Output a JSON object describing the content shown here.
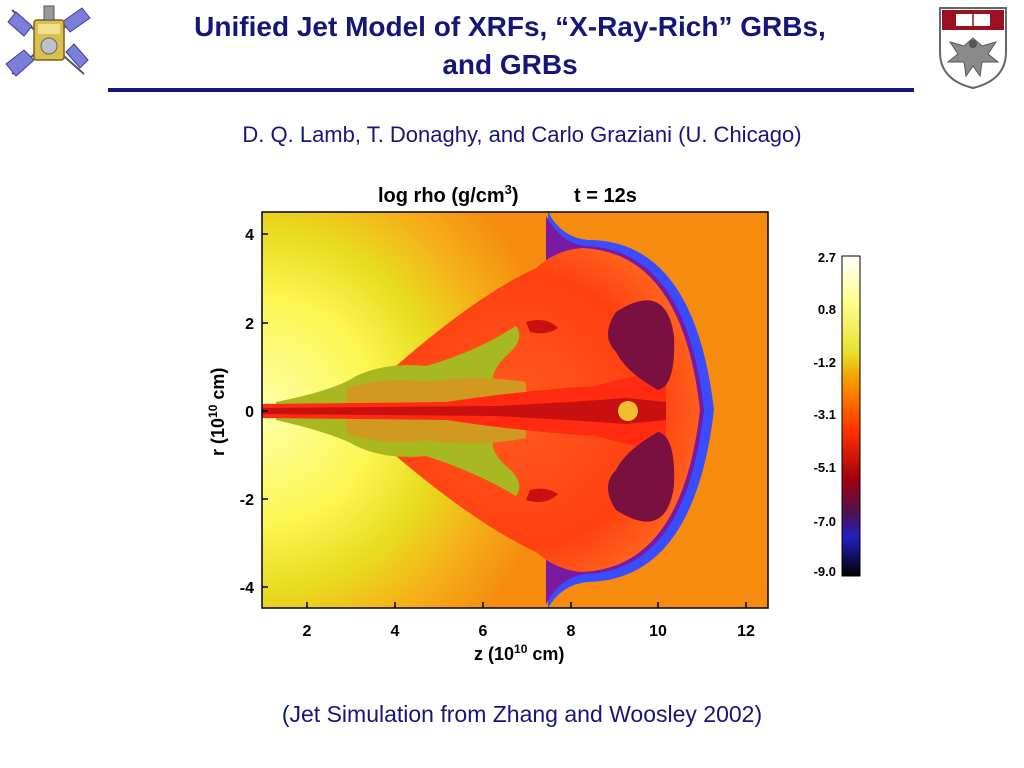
{
  "slide": {
    "title_line1": "Unified Jet Model of XRFs, “X-Ray-Rich” GRBs,",
    "title_line2": "and GRBs",
    "authors": "D. Q. Lamb, T. Donaghy, and Carlo Graziani (U. Chicago)",
    "caption": "(Jet Simulation from Zhang and Woosley 2002)"
  },
  "icons": {
    "left_logo": "satellite-icon",
    "right_logo": "university-seal-icon"
  },
  "figure": {
    "title_main": "log rho (g/cm",
    "title_sup": "3",
    "title_close": ")",
    "title_time": "t = 12s",
    "xlabel_main": "z (10",
    "xlabel_sup": "10",
    "xlabel_close": " cm)",
    "ylabel_main": "r (10",
    "ylabel_sup": "10",
    "ylabel_close": " cm)",
    "xticks": [
      "2",
      "4",
      "6",
      "8",
      "10",
      "12"
    ],
    "yticks": [
      "4",
      "2",
      "0",
      "-2",
      "-4"
    ],
    "colorbar_ticks": [
      "2.7",
      "0.8",
      "-1.2",
      "-3.1",
      "-5.1",
      "-7.0",
      "-9.0"
    ],
    "colors": {
      "colorbar": [
        "#ffffff",
        "#ffff80",
        "#e8e030",
        "#f5a000",
        "#ff4000",
        "#cc0000",
        "#600030",
        "#2020c0",
        "#000000"
      ]
    }
  },
  "chart_data": {
    "type": "heatmap",
    "title": "log rho (g/cm3)  t = 12s",
    "xlabel": "z (10^10 cm)",
    "ylabel": "r (10^10 cm)",
    "xlim": [
      1,
      12.5
    ],
    "ylim": [
      -4.5,
      4.5
    ],
    "x_ticks": [
      2,
      4,
      6,
      8,
      10,
      12
    ],
    "y_ticks": [
      -4,
      -2,
      0,
      2,
      4
    ],
    "colorbar": {
      "label": "log rho",
      "ticks": [
        2.7,
        0.8,
        -1.2,
        -3.1,
        -5.1,
        -7.0,
        -9.0
      ]
    }
  }
}
